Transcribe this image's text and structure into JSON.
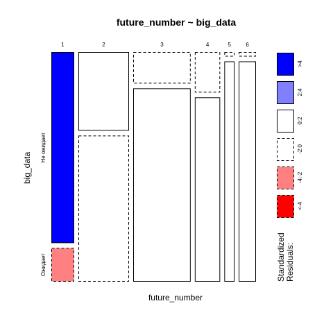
{
  "chart_data": {
    "type": "mosaic",
    "title": "future_number ~ big_data",
    "xlabel": "future_number",
    "ylabel": "big_data",
    "x_categories": [
      "1",
      "2",
      "3",
      "4",
      "5",
      "6"
    ],
    "y_categories": [
      "Не ожидает",
      "Ожидает"
    ],
    "x_proportions": [
      0.094,
      0.208,
      0.236,
      0.104,
      0.042,
      0.071
    ],
    "cells": [
      {
        "x": "1",
        "y": "Не ожидает",
        "proportion": 0.85,
        "residual_class": ">4"
      },
      {
        "x": "1",
        "y": "Ожидает",
        "proportion": 0.15,
        "residual_class": "-4:-2"
      },
      {
        "x": "2",
        "y": "Не ожидает",
        "proportion": 0.35,
        "residual_class": "0:2"
      },
      {
        "x": "2",
        "y": "Ожидает",
        "proportion": 0.65,
        "residual_class": "-2:0"
      },
      {
        "x": "3",
        "y": "Не ожидает",
        "proportion": 0.14,
        "residual_class": "-2:0"
      },
      {
        "x": "3",
        "y": "Ожидает",
        "proportion": 0.86,
        "residual_class": "0:2"
      },
      {
        "x": "4",
        "y": "Не ожидает",
        "proportion": 0.18,
        "residual_class": "-2:0"
      },
      {
        "x": "4",
        "y": "Ожидает",
        "proportion": 0.82,
        "residual_class": "0:2"
      },
      {
        "x": "5",
        "y": "Не ожидает",
        "proportion": 0.02,
        "residual_class": "-2:0"
      },
      {
        "x": "5",
        "y": "Ожидает",
        "proportion": 0.98,
        "residual_class": "0:2"
      },
      {
        "x": "6",
        "y": "Не ожидает",
        "proportion": 0.02,
        "residual_class": "-2:0"
      },
      {
        "x": "6",
        "y": "Ожидает",
        "proportion": 0.98,
        "residual_class": "0:2"
      }
    ],
    "legend": {
      "title_line1": "Standardized",
      "title_line2": "Residuals:",
      "classes": [
        {
          "label": ">4",
          "color": "#0000ff",
          "dashed": false
        },
        {
          "label": "2:4",
          "color": "#8080ff",
          "dashed": false
        },
        {
          "label": "0:2",
          "color": "#ffffff",
          "dashed": false
        },
        {
          "label": "-2:0",
          "color": "#ffffff",
          "dashed": true
        },
        {
          "label": "-4:-2",
          "color": "#ff8080",
          "dashed": true
        },
        {
          "label": "<-4",
          "color": "#ff0000",
          "dashed": true
        }
      ]
    }
  }
}
